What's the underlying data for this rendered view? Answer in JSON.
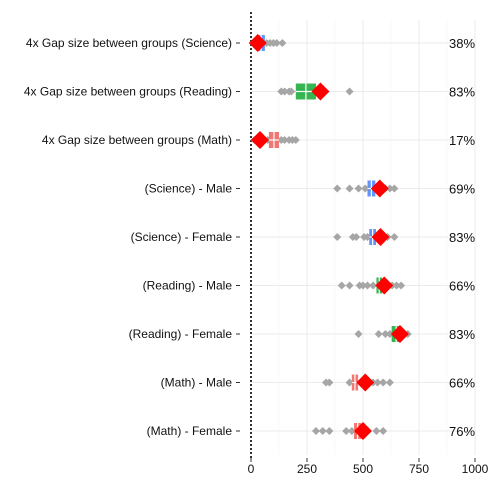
{
  "chart_data": {
    "type": "scatter",
    "xlim": [
      -10,
      1000
    ],
    "x_ticks": [
      0,
      250,
      500,
      750,
      1000
    ],
    "x_tick_labels": [
      "0",
      "250",
      "500",
      "750",
      "1000"
    ],
    "zero_reference_line": true,
    "grid": true,
    "colors": {
      "red_diamond": "#ff0000",
      "grey_points": "#a6a6a6",
      "science": "#5b8ff9",
      "reading": "#2db14a",
      "math": "#f0706a"
    },
    "rows": [
      {
        "label": "4x Gap size between groups (Science)",
        "percent": "38%",
        "color": "science",
        "center": 30,
        "box_lo": 28,
        "box_hi": 62,
        "points": [
          10,
          20,
          40,
          55,
          70,
          85,
          100,
          115,
          140
        ]
      },
      {
        "label": "4x Gap size between groups (Reading)",
        "percent": "83%",
        "color": "reading",
        "center": 310,
        "box_lo": 200,
        "box_hi": 290,
        "points": [
          135,
          150,
          170,
          180,
          215,
          230,
          270,
          290,
          320,
          440
        ]
      },
      {
        "label": "4x Gap size between groups (Math)",
        "percent": "17%",
        "color": "math",
        "center": 40,
        "box_lo": 80,
        "box_hi": 125,
        "points": [
          15,
          30,
          60,
          75,
          110,
          135,
          150,
          170,
          185,
          200
        ]
      },
      {
        "label": "(Science) - Male",
        "percent": "69%",
        "color": "science",
        "center": 575,
        "box_lo": 520,
        "box_hi": 555,
        "points": [
          385,
          440,
          480,
          510,
          530,
          555,
          580,
          600,
          620,
          640
        ]
      },
      {
        "label": "(Science) - Female",
        "percent": "83%",
        "color": "science",
        "center": 578,
        "box_lo": 528,
        "box_hi": 558,
        "points": [
          385,
          455,
          470,
          505,
          520,
          540,
          560,
          595,
          610,
          640
        ]
      },
      {
        "label": "(Reading) - Male",
        "percent": "66%",
        "color": "reading",
        "center": 595,
        "box_lo": 560,
        "box_hi": 585,
        "points": [
          405,
          440,
          485,
          500,
          520,
          545,
          600,
          630,
          650,
          670
        ]
      },
      {
        "label": "(Reading) - Female",
        "percent": "83%",
        "color": "reading",
        "center": 665,
        "box_lo": 628,
        "box_hi": 668,
        "points": [
          480,
          570,
          600,
          620,
          645,
          660,
          680,
          700
        ]
      },
      {
        "label": "(Math) - Male",
        "percent": "66%",
        "color": "math",
        "center": 510,
        "box_lo": 450,
        "box_hi": 478,
        "points": [
          335,
          350,
          440,
          465,
          490,
          520,
          545,
          565,
          590,
          620
        ]
      },
      {
        "label": "(Math) - Female",
        "percent": "76%",
        "color": "math",
        "center": 500,
        "box_lo": 460,
        "box_hi": 492,
        "points": [
          290,
          320,
          350,
          425,
          450,
          470,
          490,
          520,
          560,
          590
        ]
      }
    ]
  }
}
